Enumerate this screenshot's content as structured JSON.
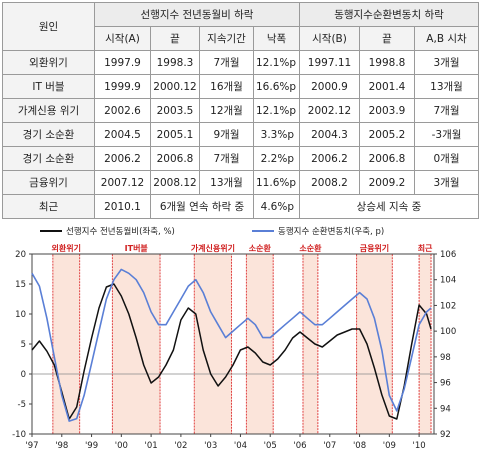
{
  "table": {
    "header": {
      "cause": "원인",
      "group_a": "선행지수 전년동월비 하락",
      "group_b": "동행지수순환변동치 하락",
      "start_a": "시작(A)",
      "end_a": "끝",
      "duration": "지속기간",
      "drop": "낙폭",
      "start_b": "시작(B)",
      "end_b": "끝",
      "lag": "A,B 시차"
    },
    "rows": [
      {
        "cause": "외환위기",
        "start_a": "1997.9",
        "end_a": "1998.3",
        "duration": "7개월",
        "drop": "12.1%p",
        "start_b": "1997.11",
        "end_b": "1998.8",
        "lag": "3개월"
      },
      {
        "cause": "IT 버블",
        "start_a": "1999.9",
        "end_a": "2000.12",
        "duration": "16개월",
        "drop": "16.6%p",
        "start_b": "2000.9",
        "end_b": "2001.4",
        "lag": "13개월"
      },
      {
        "cause": "가계신용 위기",
        "start_a": "2002.6",
        "end_a": "2003.5",
        "duration": "12개월",
        "drop": "12.1%p",
        "start_b": "2002.12",
        "end_b": "2003.9",
        "lag": "7개월"
      },
      {
        "cause": "경기 소순환",
        "start_a": "2004.5",
        "end_a": "2005.1",
        "duration": "9개월",
        "drop": "3.3%p",
        "start_b": "2004.3",
        "end_b": "2005.2",
        "lag": "-3개월"
      },
      {
        "cause": "경기 소순환",
        "start_a": "2006.2",
        "end_a": "2006.8",
        "duration": "7개월",
        "drop": "2.2%p",
        "start_b": "2006.2",
        "end_b": "2006.8",
        "lag": "0개월"
      },
      {
        "cause": "금융위기",
        "start_a": "2007.12",
        "end_a": "2008.12",
        "duration": "13개월",
        "drop": "11.6%p",
        "start_b": "2008.2",
        "end_b": "2009.2",
        "lag": "3개월"
      }
    ],
    "recent": {
      "cause": "최근",
      "start_a": "2010.1",
      "note": "6개월 연속 하락 중",
      "drop": "4.6%p",
      "b_note": "상승세 지속 중"
    }
  },
  "chart_data": {
    "type": "line",
    "x_ticks": [
      "'97",
      "'98",
      "'99",
      "'00",
      "'01",
      "'02",
      "'03",
      "'04",
      "'05",
      "'06",
      "'07",
      "'08",
      "'09",
      "'10"
    ],
    "xlim": [
      1997.0,
      2010.5
    ],
    "ylim_left": [
      -10,
      20
    ],
    "ylim_right": [
      92,
      106
    ],
    "yticks_left": [
      -10,
      -5,
      0,
      5,
      10,
      15,
      20
    ],
    "yticks_right": [
      92,
      94,
      96,
      98,
      100,
      102,
      104,
      106
    ],
    "series": [
      {
        "name": "선행지수 전년동월비(좌축, %)",
        "axis": "left",
        "color": "#111111",
        "points": [
          [
            1997.0,
            4.0
          ],
          [
            1997.25,
            5.5
          ],
          [
            1997.5,
            3.8
          ],
          [
            1997.75,
            1.5
          ],
          [
            1998.0,
            -3.0
          ],
          [
            1998.25,
            -7.5
          ],
          [
            1998.5,
            -5.5
          ],
          [
            1998.75,
            0.5
          ],
          [
            1999.0,
            6.0
          ],
          [
            1999.25,
            11.0
          ],
          [
            1999.5,
            14.5
          ],
          [
            1999.75,
            15.0
          ],
          [
            2000.0,
            13.0
          ],
          [
            2000.25,
            10.0
          ],
          [
            2000.5,
            6.0
          ],
          [
            2000.75,
            1.5
          ],
          [
            2001.0,
            -1.5
          ],
          [
            2001.25,
            -0.5
          ],
          [
            2001.5,
            1.5
          ],
          [
            2001.75,
            4.0
          ],
          [
            2002.0,
            9.0
          ],
          [
            2002.25,
            11.0
          ],
          [
            2002.5,
            10.0
          ],
          [
            2002.75,
            4.0
          ],
          [
            2003.0,
            0.0
          ],
          [
            2003.25,
            -2.0
          ],
          [
            2003.5,
            -0.5
          ],
          [
            2003.75,
            1.5
          ],
          [
            2004.0,
            4.0
          ],
          [
            2004.25,
            4.5
          ],
          [
            2004.5,
            3.5
          ],
          [
            2004.75,
            2.0
          ],
          [
            2005.0,
            1.5
          ],
          [
            2005.25,
            2.5
          ],
          [
            2005.5,
            4.0
          ],
          [
            2005.75,
            6.0
          ],
          [
            2006.0,
            7.0
          ],
          [
            2006.25,
            6.0
          ],
          [
            2006.5,
            5.0
          ],
          [
            2006.75,
            4.5
          ],
          [
            2007.0,
            5.5
          ],
          [
            2007.25,
            6.5
          ],
          [
            2007.5,
            7.0
          ],
          [
            2007.75,
            7.5
          ],
          [
            2008.0,
            7.5
          ],
          [
            2008.25,
            5.0
          ],
          [
            2008.5,
            1.0
          ],
          [
            2008.75,
            -3.5
          ],
          [
            2009.0,
            -7.0
          ],
          [
            2009.25,
            -7.5
          ],
          [
            2009.5,
            -2.0
          ],
          [
            2009.75,
            5.0
          ],
          [
            2010.0,
            11.5
          ],
          [
            2010.25,
            10.0
          ],
          [
            2010.4,
            7.5
          ]
        ]
      },
      {
        "name": "동행지수 순환변동치(우축, p)",
        "axis": "right",
        "color": "#5a7fd6",
        "points": [
          [
            1997.0,
            104.5
          ],
          [
            1997.25,
            103.5
          ],
          [
            1997.5,
            101.0
          ],
          [
            1997.75,
            98.0
          ],
          [
            1998.0,
            95.0
          ],
          [
            1998.25,
            93.0
          ],
          [
            1998.5,
            93.2
          ],
          [
            1998.75,
            95.0
          ],
          [
            1999.0,
            97.5
          ],
          [
            1999.25,
            100.0
          ],
          [
            1999.5,
            102.5
          ],
          [
            1999.75,
            104.0
          ],
          [
            2000.0,
            104.8
          ],
          [
            2000.25,
            104.5
          ],
          [
            2000.5,
            104.0
          ],
          [
            2000.75,
            103.0
          ],
          [
            2001.0,
            101.5
          ],
          [
            2001.25,
            100.5
          ],
          [
            2001.5,
            100.5
          ],
          [
            2001.75,
            101.5
          ],
          [
            2002.0,
            102.5
          ],
          [
            2002.25,
            103.5
          ],
          [
            2002.5,
            104.0
          ],
          [
            2002.75,
            103.0
          ],
          [
            2003.0,
            101.5
          ],
          [
            2003.25,
            100.5
          ],
          [
            2003.5,
            99.5
          ],
          [
            2003.75,
            100.0
          ],
          [
            2004.0,
            100.5
          ],
          [
            2004.25,
            101.0
          ],
          [
            2004.5,
            100.5
          ],
          [
            2004.75,
            99.5
          ],
          [
            2005.0,
            99.5
          ],
          [
            2005.25,
            100.0
          ],
          [
            2005.5,
            100.5
          ],
          [
            2005.75,
            101.0
          ],
          [
            2006.0,
            101.5
          ],
          [
            2006.25,
            101.0
          ],
          [
            2006.5,
            100.5
          ],
          [
            2006.75,
            100.5
          ],
          [
            2007.0,
            101.0
          ],
          [
            2007.25,
            101.5
          ],
          [
            2007.5,
            102.0
          ],
          [
            2007.75,
            102.5
          ],
          [
            2008.0,
            103.0
          ],
          [
            2008.25,
            102.5
          ],
          [
            2008.5,
            101.0
          ],
          [
            2008.75,
            98.5
          ],
          [
            2009.0,
            95.0
          ],
          [
            2009.25,
            93.8
          ],
          [
            2009.5,
            95.5
          ],
          [
            2009.75,
            98.0
          ],
          [
            2010.0,
            100.5
          ],
          [
            2010.25,
            101.5
          ],
          [
            2010.4,
            101.8
          ]
        ]
      }
    ],
    "shaded_periods": [
      {
        "label": "외환위기",
        "start": 1997.7,
        "end": 1998.6
      },
      {
        "label": "IT버블",
        "start": 1999.7,
        "end": 2001.3
      },
      {
        "label": "가계신용위기",
        "start": 2002.45,
        "end": 2003.7
      },
      {
        "label": "소순환",
        "start": 2004.2,
        "end": 2005.1
      },
      {
        "label": "소순환",
        "start": 2006.1,
        "end": 2006.6
      },
      {
        "label": "금융위기",
        "start": 2007.9,
        "end": 2009.1
      },
      {
        "label": "최근",
        "start": 2010.0,
        "end": 2010.4
      }
    ],
    "colors": {
      "shade_fill": "#fbe4da",
      "shade_border": "#e04040",
      "label_red": "#d02020",
      "zero_line": "#888888"
    }
  }
}
